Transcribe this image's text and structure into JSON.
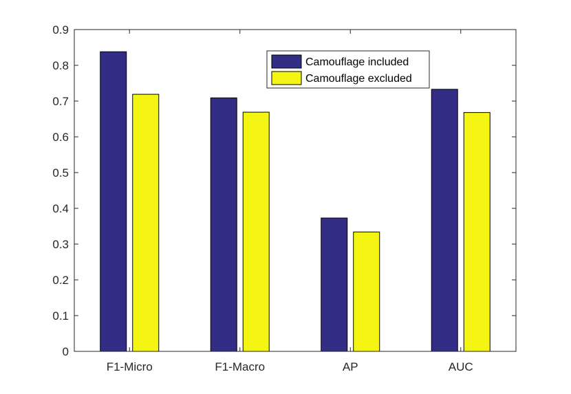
{
  "chart_data": {
    "type": "bar",
    "title": "",
    "xlabel": "",
    "ylabel": "",
    "categories": [
      "F1-Micro",
      "F1-Macro",
      "AP",
      "AUC"
    ],
    "series": [
      {
        "name": "Camouflage included",
        "color": "#332d85",
        "values": [
          0.838,
          0.709,
          0.373,
          0.733
        ]
      },
      {
        "name": "Camouflage excluded",
        "color": "#f5f514",
        "values": [
          0.719,
          0.669,
          0.334,
          0.668
        ]
      }
    ],
    "ylim": [
      0,
      0.9
    ],
    "yticks": [
      "0",
      "0.1",
      "0.2",
      "0.3",
      "0.4",
      "0.5",
      "0.6",
      "0.7",
      "0.8",
      "0.9"
    ],
    "grid": false,
    "legend_position": "top-right"
  }
}
